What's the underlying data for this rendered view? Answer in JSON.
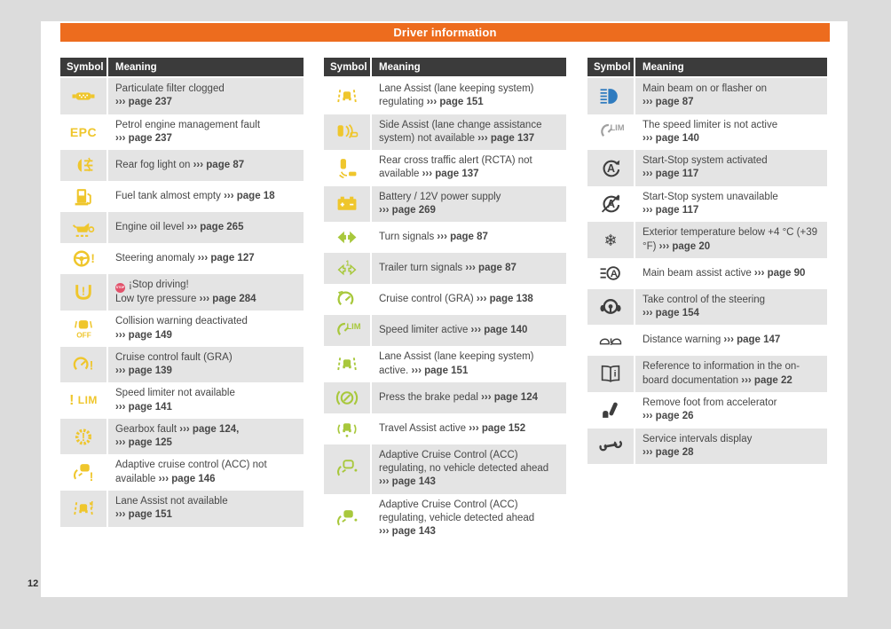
{
  "page": {
    "title": "Driver information",
    "page_number": "12"
  },
  "colors": {
    "accent": "#ed6c1e",
    "header_bg": "#3b3b3b",
    "row_gray": "#e4e4e4",
    "yellow": "#efc62c",
    "green": "#a8c83c",
    "blue": "#2f7bbf",
    "dark": "#3e3e3e",
    "gray": "#a0a0a0",
    "red": "#e2526b",
    "text": "#474747"
  },
  "badges": {
    "stop": "STOP"
  },
  "table_header": {
    "symbol": "Symbol",
    "meaning": "Meaning"
  },
  "tables": [
    {
      "row_shading_start": "gray",
      "rows": [
        {
          "icon": "particulate-filter-icon",
          "color": "yellow",
          "lines": [
            [
              {
                "t": "Particulate filter clogged"
              }
            ],
            [
              {
                "t": "››› page 237",
                "b": true
              }
            ]
          ]
        },
        {
          "icon": "epc-icon",
          "color": "yellow",
          "lines": [
            [
              {
                "t": "Petrol engine management fault"
              }
            ],
            [
              {
                "t": "››› page 237",
                "b": true
              }
            ]
          ]
        },
        {
          "icon": "rear-fog-light-icon",
          "color": "yellow",
          "lines": [
            [
              {
                "t": "Rear fog light on "
              },
              {
                "t": "››› page 87",
                "b": true
              }
            ]
          ]
        },
        {
          "icon": "fuel-tank-icon",
          "color": "yellow",
          "lines": [
            [
              {
                "t": "Fuel tank almost empty "
              },
              {
                "t": "››› page 18",
                "b": true
              }
            ]
          ]
        },
        {
          "icon": "engine-oil-icon",
          "color": "yellow",
          "lines": [
            [
              {
                "t": "Engine oil level "
              },
              {
                "t": "››› page 265",
                "b": true
              }
            ]
          ]
        },
        {
          "icon": "steering-anomaly-icon",
          "color": "yellow",
          "lines": [
            [
              {
                "t": "Steering anomaly "
              },
              {
                "t": "››› page 127",
                "b": true
              }
            ]
          ]
        },
        {
          "icon": "tyre-pressure-icon",
          "color": "yellow",
          "lines": [
            [
              {
                "badge": "stop"
              },
              {
                "t": "¡Stop driving!"
              }
            ],
            [
              {
                "t": "Low tyre pressure "
              },
              {
                "t": "››› page 284",
                "b": true
              }
            ]
          ]
        },
        {
          "icon": "collision-warning-off-icon",
          "color": "yellow",
          "lines": [
            [
              {
                "t": "Collision warning deactivated"
              }
            ],
            [
              {
                "t": "››› page 149",
                "b": true
              }
            ]
          ]
        },
        {
          "icon": "cruise-control-fault-icon",
          "color": "yellow",
          "lines": [
            [
              {
                "t": "Cruise control fault (GRA)"
              }
            ],
            [
              {
                "t": "››› page 139",
                "b": true
              }
            ]
          ]
        },
        {
          "icon": "speed-limiter-not-available-icon",
          "color": "yellow",
          "lines": [
            [
              {
                "t": "Speed limiter not available"
              }
            ],
            [
              {
                "t": "››› page 141",
                "b": true
              }
            ]
          ]
        },
        {
          "icon": "gearbox-fault-icon",
          "color": "yellow",
          "lines": [
            [
              {
                "t": "Gearbox fault "
              },
              {
                "t": "››› page 124,",
                "b": true
              }
            ],
            [
              {
                "t": "››› page 125",
                "b": true
              }
            ]
          ]
        },
        {
          "icon": "acc-not-available-icon",
          "color": "yellow",
          "lines": [
            [
              {
                "t": "Adaptive cruise control (ACC) not available "
              },
              {
                "t": "››› page 146",
                "b": true
              }
            ]
          ]
        },
        {
          "icon": "lane-assist-not-available-icon",
          "color": "yellow",
          "lines": [
            [
              {
                "t": "Lane Assist not available"
              }
            ],
            [
              {
                "t": "››› page 151",
                "b": true
              }
            ]
          ]
        }
      ]
    },
    {
      "row_shading_start": "white",
      "rows": [
        {
          "icon": "lane-assist-regulating-icon",
          "color": "yellow",
          "lines": [
            [
              {
                "t": "Lane Assist (lane keeping system) regulating "
              },
              {
                "t": "››› page 151",
                "b": true
              }
            ]
          ]
        },
        {
          "icon": "side-assist-icon",
          "color": "yellow",
          "lines": [
            [
              {
                "t": "Side Assist (lane change assistance system) not available "
              },
              {
                "t": "››› page 137",
                "b": true
              }
            ]
          ]
        },
        {
          "icon": "rcta-icon",
          "color": "yellow",
          "lines": [
            [
              {
                "t": "Rear cross traffic alert (RCTA) not available "
              },
              {
                "t": "››› page 137",
                "b": true
              }
            ]
          ]
        },
        {
          "icon": "battery-icon",
          "color": "yellow",
          "lines": [
            [
              {
                "t": "Battery / 12V power supply"
              }
            ],
            [
              {
                "t": "››› page 269",
                "b": true
              }
            ]
          ]
        },
        {
          "icon": "turn-signals-icon",
          "color": "green",
          "lines": [
            [
              {
                "t": "Turn signals "
              },
              {
                "t": "››› page 87",
                "b": true
              }
            ]
          ]
        },
        {
          "icon": "trailer-turn-signals-icon",
          "color": "green",
          "lines": [
            [
              {
                "t": "Trailer turn signals "
              },
              {
                "t": "››› page 87",
                "b": true
              }
            ]
          ]
        },
        {
          "icon": "cruise-control-icon",
          "color": "green",
          "lines": [
            [
              {
                "t": "Cruise control (GRA) "
              },
              {
                "t": "››› page 138",
                "b": true
              }
            ]
          ]
        },
        {
          "icon": "speed-limiter-active-icon",
          "color": "green",
          "lines": [
            [
              {
                "t": "Speed limiter active "
              },
              {
                "t": "››› page 140",
                "b": true
              }
            ]
          ]
        },
        {
          "icon": "lane-assist-active-icon",
          "color": "green",
          "lines": [
            [
              {
                "t": "Lane Assist (lane keeping system) active. "
              },
              {
                "t": "››› page 151",
                "b": true
              }
            ]
          ]
        },
        {
          "icon": "brake-pedal-icon",
          "color": "green",
          "lines": [
            [
              {
                "t": "Press the brake pedal "
              },
              {
                "t": "››› page 124",
                "b": true
              }
            ]
          ]
        },
        {
          "icon": "travel-assist-icon",
          "color": "green",
          "lines": [
            [
              {
                "t": "Travel Assist active "
              },
              {
                "t": "››› page 152",
                "b": true
              }
            ]
          ]
        },
        {
          "icon": "acc-no-vehicle-icon",
          "color": "green",
          "lines": [
            [
              {
                "t": "Adaptive Cruise Control (ACC) regulating, no vehicle detected ahead"
              }
            ],
            [
              {
                "t": "››› page 143",
                "b": true
              }
            ]
          ]
        },
        {
          "icon": "acc-vehicle-icon",
          "color": "green",
          "lines": [
            [
              {
                "t": "Adaptive Cruise Control (ACC) regulating, vehicle detected ahead"
              }
            ],
            [
              {
                "t": "››› page 143",
                "b": true
              }
            ]
          ]
        }
      ]
    },
    {
      "row_shading_start": "gray",
      "rows": [
        {
          "icon": "main-beam-icon",
          "color": "blue",
          "lines": [
            [
              {
                "t": "Main beam on or flasher on"
              }
            ],
            [
              {
                "t": "››› page 87",
                "b": true
              }
            ]
          ]
        },
        {
          "icon": "speed-limiter-inactive-icon",
          "color": "gray",
          "lines": [
            [
              {
                "t": "The speed limiter is not active"
              }
            ],
            [
              {
                "t": "››› page 140",
                "b": true
              }
            ]
          ]
        },
        {
          "icon": "start-stop-activated-icon",
          "color": "dark",
          "lines": [
            [
              {
                "t": "Start-Stop system activated"
              }
            ],
            [
              {
                "t": "››› page 117",
                "b": true
              }
            ]
          ]
        },
        {
          "icon": "start-stop-unavailable-icon",
          "color": "dark",
          "lines": [
            [
              {
                "t": "Start-Stop system unavailable"
              }
            ],
            [
              {
                "t": "››› page 117",
                "b": true
              }
            ]
          ]
        },
        {
          "icon": "exterior-temperature-icon",
          "color": "dark",
          "lines": [
            [
              {
                "t": "Exterior temperature below +4 °C (+39 °F) "
              },
              {
                "t": "››› page 20",
                "b": true
              }
            ]
          ]
        },
        {
          "icon": "main-beam-assist-icon",
          "color": "dark",
          "lines": [
            [
              {
                "t": "Main beam assist active "
              },
              {
                "t": "››› page 90",
                "b": true
              }
            ]
          ]
        },
        {
          "icon": "steering-takeover-icon",
          "color": "dark",
          "lines": [
            [
              {
                "t": "Take control of the steering"
              }
            ],
            [
              {
                "t": "››› page 154",
                "b": true
              }
            ]
          ]
        },
        {
          "icon": "distance-warning-icon",
          "color": "dark",
          "lines": [
            [
              {
                "t": "Distance warning "
              },
              {
                "t": "››› page 147",
                "b": true
              }
            ]
          ]
        },
        {
          "icon": "onboard-documentation-icon",
          "color": "dark",
          "lines": [
            [
              {
                "t": "Reference to information in the on-board documentation "
              },
              {
                "t": "››› page 22",
                "b": true
              }
            ]
          ]
        },
        {
          "icon": "remove-foot-icon",
          "color": "dark",
          "lines": [
            [
              {
                "t": "Remove foot from accelerator"
              }
            ],
            [
              {
                "t": "››› page 26",
                "b": true
              }
            ]
          ]
        },
        {
          "icon": "service-intervals-icon",
          "color": "dark",
          "lines": [
            [
              {
                "t": "Service intervals display"
              }
            ],
            [
              {
                "t": "››› page 28",
                "b": true
              }
            ]
          ]
        }
      ]
    }
  ]
}
